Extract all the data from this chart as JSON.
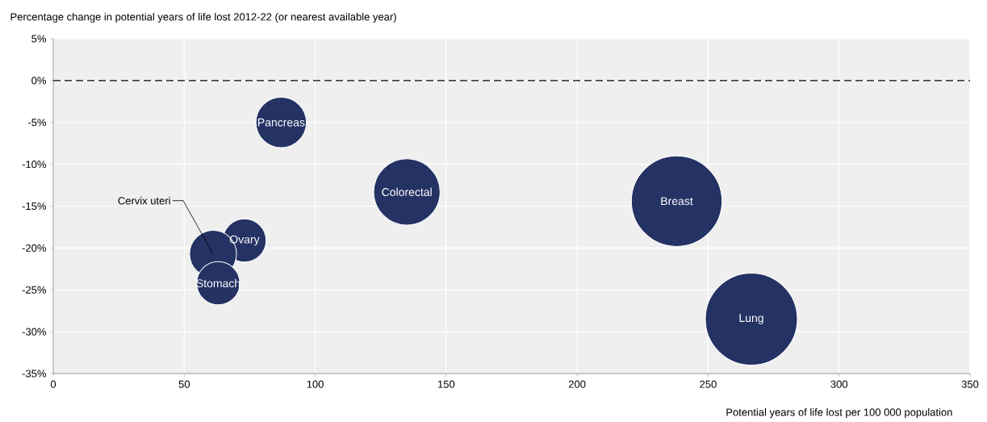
{
  "chart_data": {
    "type": "bubble",
    "ylabel": "Percentage change in potential years of life lost 2012-22 (or nearest available year)",
    "xlabel": "Potential years of life lost per 100 000 population",
    "x": [
      87,
      135,
      238,
      266.5,
      73,
      61,
      63
    ],
    "values": [
      -5,
      -13.3,
      -14.4,
      -28.5,
      -19.1,
      -20.7,
      -24.2
    ],
    "sizes": [
      0.3,
      0.52,
      0.97,
      1,
      0.22,
      0.26,
      0.22
    ],
    "color": "#253264",
    "xlim": [
      0,
      350
    ],
    "ylim": [
      -35,
      5
    ],
    "xticks": [
      0,
      50,
      100,
      150,
      200,
      250,
      300,
      350
    ],
    "yticks": [
      {
        "value": 5,
        "label": "5%"
      },
      {
        "value": 0,
        "label": "0%"
      },
      {
        "value": -5,
        "label": "-5%"
      },
      {
        "value": -10,
        "label": "-10%"
      },
      {
        "value": -15,
        "label": "-15%"
      },
      {
        "value": -20,
        "label": "-20%"
      },
      {
        "value": -25,
        "label": "-25%"
      },
      {
        "value": -30,
        "label": "-30%"
      },
      {
        "value": -35,
        "label": "-35%"
      }
    ],
    "grid": true,
    "ref_lines": [
      {
        "axis": "y",
        "value": 0,
        "line_style": "dashed",
        "color": "#000000"
      }
    ],
    "annotations": [
      {
        "text": "Pancreas",
        "x": 87,
        "y": -5
      },
      {
        "text": "Colorectal",
        "x": 135,
        "y": -13.3
      },
      {
        "text": "Breast",
        "x": 238,
        "y": -14.4
      },
      {
        "text": "Lung",
        "x": 266.5,
        "y": -28.5
      },
      {
        "text": "Ovary",
        "x": 73,
        "y": -19.1
      },
      {
        "text": "Cervix uteri",
        "x": 61,
        "y": -20.7
      },
      {
        "text": "Stomach",
        "x": 63,
        "y": -24.2
      }
    ]
  }
}
